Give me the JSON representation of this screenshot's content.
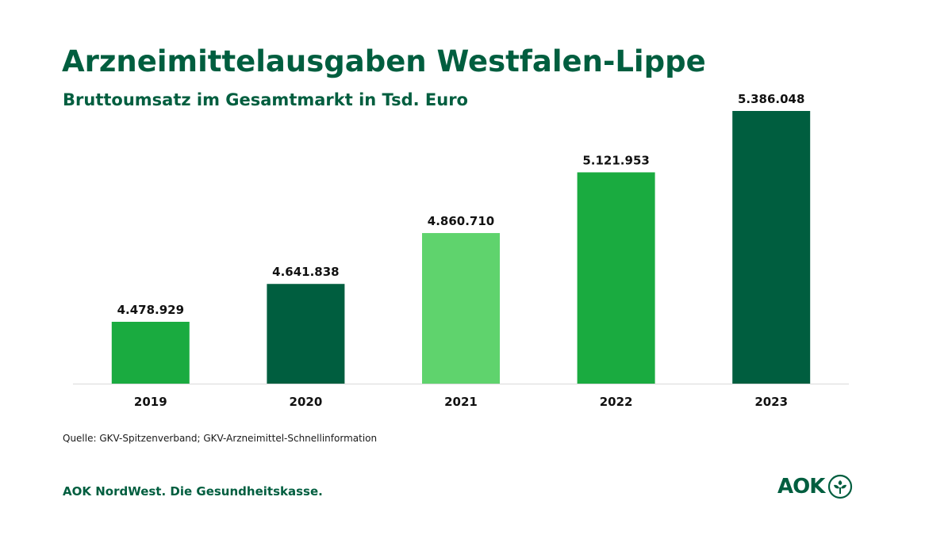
{
  "header": {
    "title": "Arzneimittelausgaben Westfalen-Lippe",
    "subtitle": "Bruttoumsatz im Gesamtmarkt in Tsd. Euro"
  },
  "chart_data": {
    "type": "bar",
    "title": "Arzneimittelausgaben Westfalen-Lippe",
    "subtitle": "Bruttoumsatz im Gesamtmarkt in Tsd. Euro",
    "categories": [
      "2019",
      "2020",
      "2021",
      "2022",
      "2023"
    ],
    "values": [
      4478929,
      4641838,
      4860710,
      5121953,
      5386048
    ],
    "value_labels": [
      "4.478.929",
      "4.641.838",
      "4.860.710",
      "5.121.953",
      "5.386.048"
    ],
    "bar_colors": [
      "#1aab40",
      "#005e3f",
      "#5fd36d",
      "#1aab40",
      "#005e3f"
    ],
    "ylim": [
      4000000,
      5500000
    ],
    "xlabel": "",
    "ylabel": "",
    "grid": false,
    "legend": "none"
  },
  "footer": {
    "source": "Quelle: GKV-Spitzenverband;  GKV-Arzneimittel-Schnellinformation",
    "company": "AOK NordWest. Die Gesundheitskasse.",
    "logo_text": "AOK"
  },
  "colors": {
    "brand_dark": "#005e3f",
    "brand_green": "#1aab40",
    "brand_light": "#5fd36d",
    "baseline": "#d9d9d9"
  }
}
